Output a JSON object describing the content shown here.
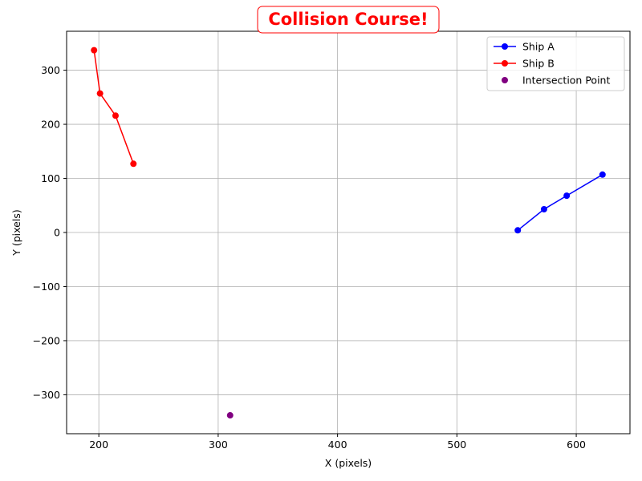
{
  "chart_data": {
    "type": "line",
    "title": "Collision Course!",
    "xlabel": "X (pixels)",
    "ylabel": "Y (pixels)",
    "xlim": [
      173,
      645
    ],
    "ylim": [
      -372,
      372
    ],
    "xticks": [
      200,
      300,
      400,
      500,
      600
    ],
    "yticks": [
      -300,
      -200,
      -100,
      0,
      100,
      200,
      300
    ],
    "xtick_labels": [
      "200",
      "300",
      "400",
      "500",
      "600"
    ],
    "ytick_labels": [
      "−300",
      "−200",
      "−100",
      "0",
      "100",
      "200",
      "300"
    ],
    "grid": true,
    "legend_position": "top-right",
    "series": [
      {
        "name": "Ship A",
        "kind": "line",
        "color": "#0000ff",
        "x": [
          551,
          573,
          592,
          622
        ],
        "y": [
          4,
          43,
          68,
          107
        ]
      },
      {
        "name": "Ship B",
        "kind": "line",
        "color": "#ff0000",
        "x": [
          196,
          201,
          214,
          229
        ],
        "y": [
          337,
          257,
          216,
          127
        ]
      },
      {
        "name": "Intersection Point",
        "kind": "scatter",
        "color": "#800080",
        "x": [
          310
        ],
        "y": [
          -338
        ]
      }
    ],
    "title_color": "#ff0000"
  }
}
